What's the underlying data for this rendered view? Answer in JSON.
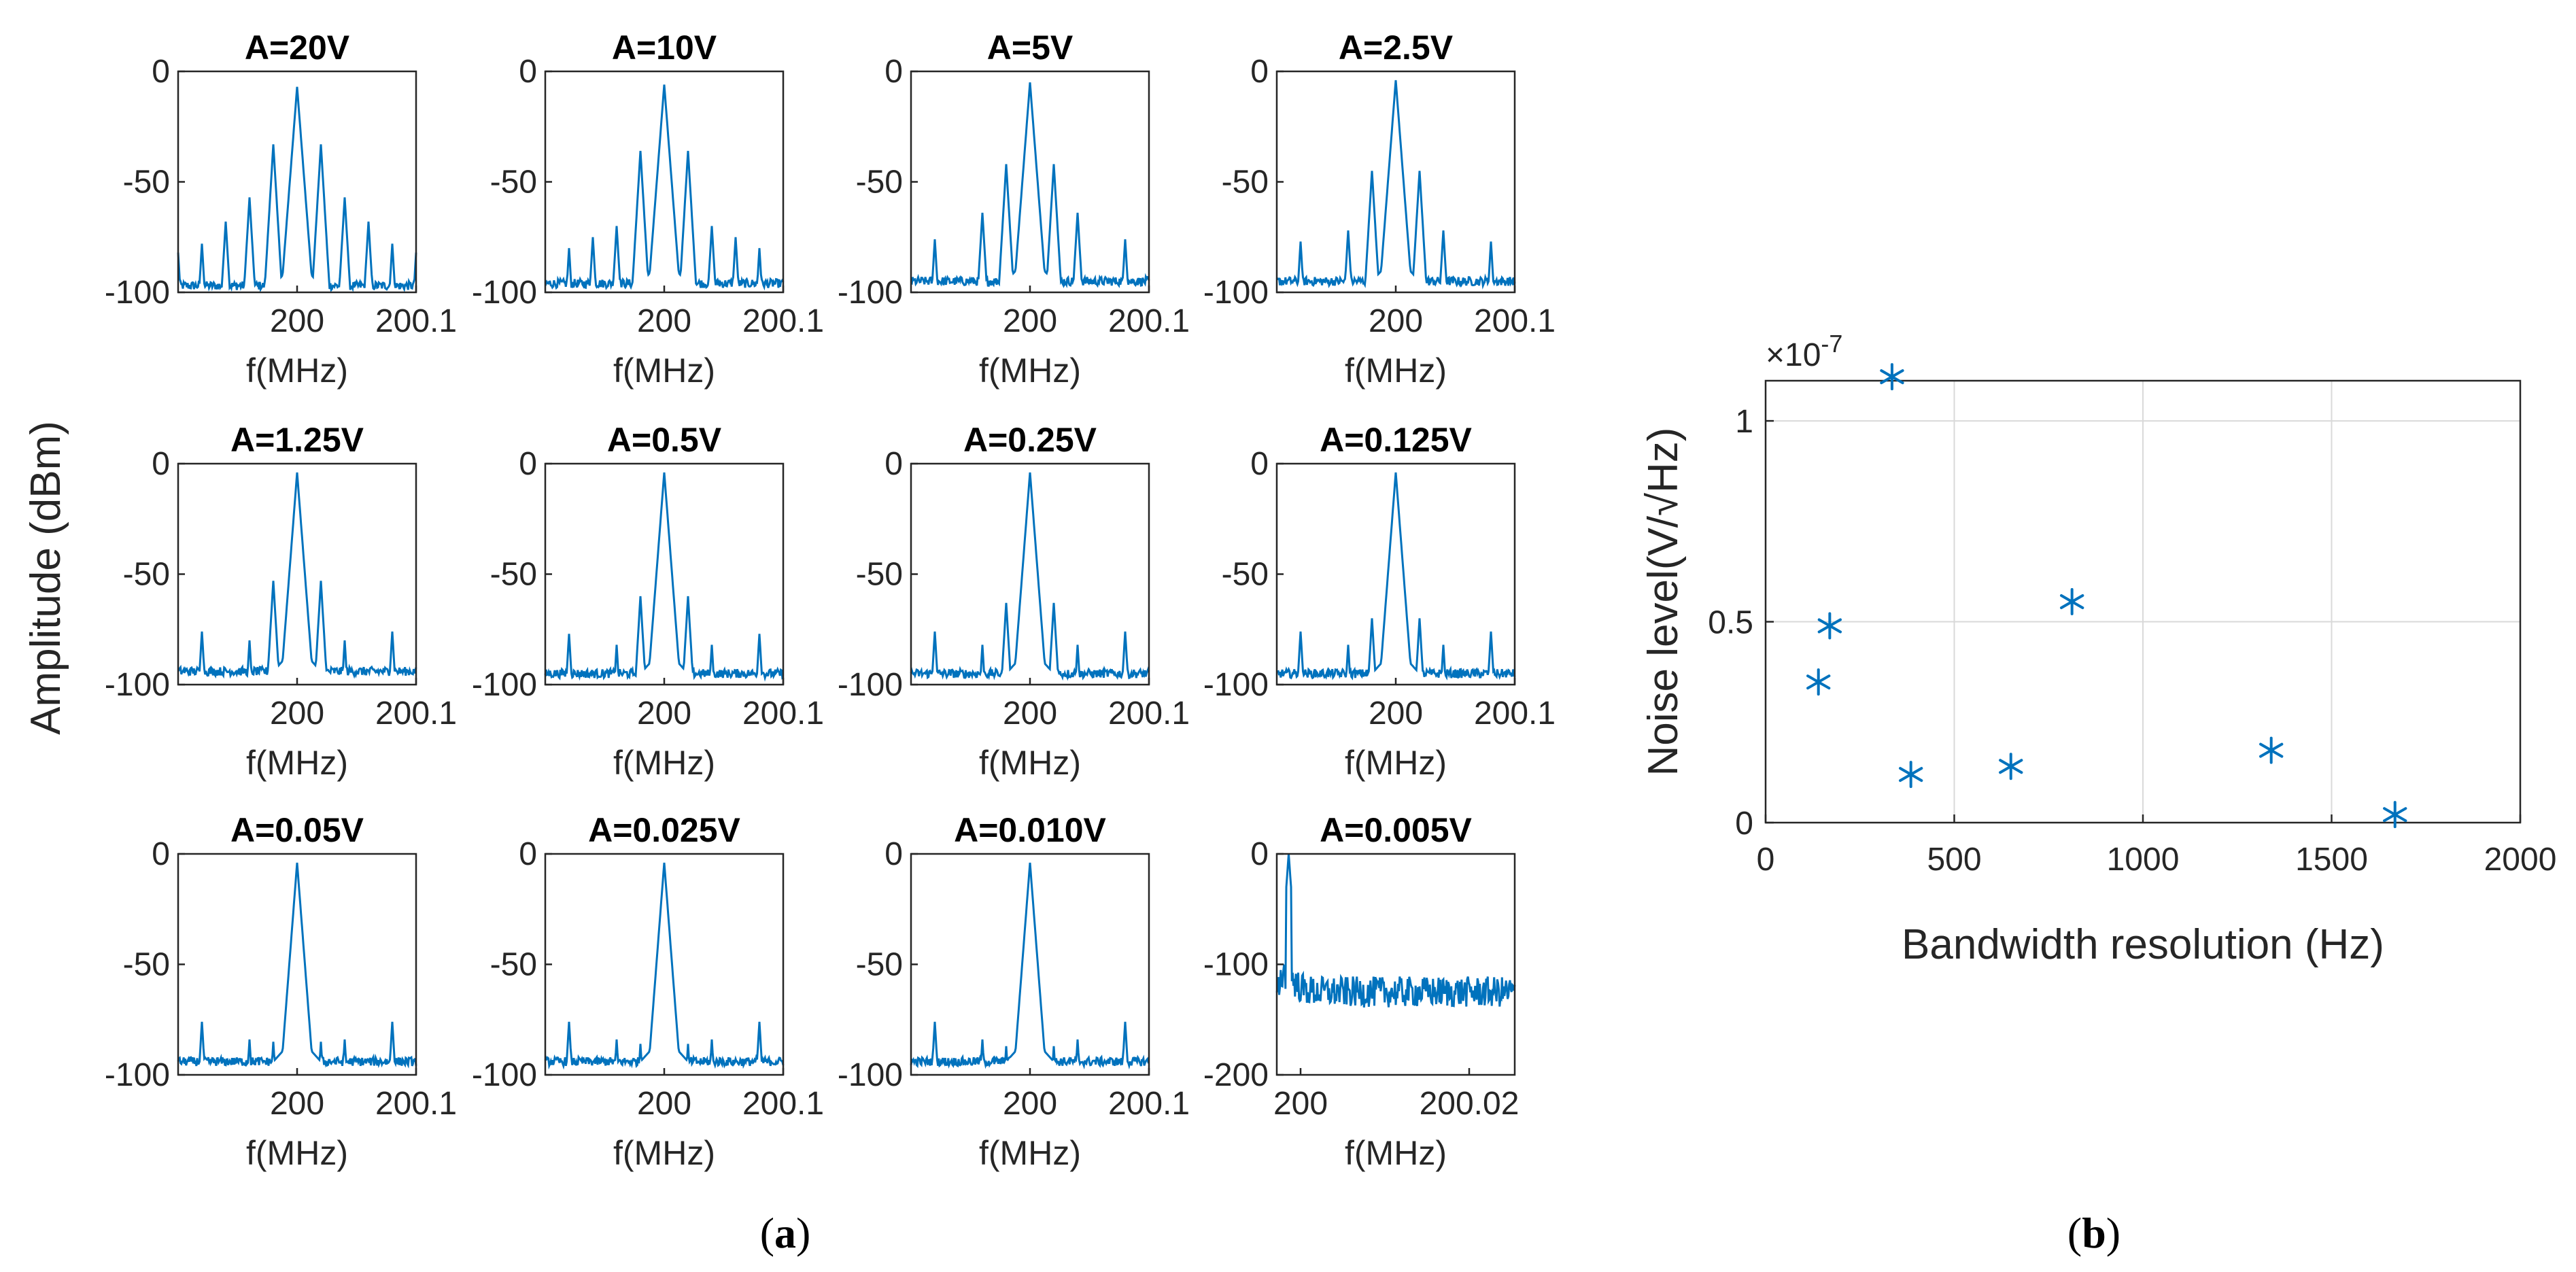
{
  "chart_data": [
    {
      "id": "a",
      "type": "line",
      "caption_letter": "a",
      "shared_ylabel": "Amplitude (dBm)",
      "color": "#0072BD",
      "subplots": [
        {
          "title": "A=20V",
          "xlabel": "f(MHz)",
          "ylim": [
            -100,
            0
          ],
          "yticks": [
            "0",
            "-50",
            "-100"
          ],
          "xtick_labels": [
            "200",
            "200.1"
          ],
          "carrier_dBm": -7,
          "floor_dBm": -97,
          "sidebands": [
            {
              "offset": 1,
              "dBm": -33
            },
            {
              "offset": 2,
              "dBm": -57
            },
            {
              "offset": 3,
              "dBm": -68
            },
            {
              "offset": 4,
              "dBm": -78
            },
            {
              "offset": 5,
              "dBm": -82
            }
          ]
        },
        {
          "title": "A=10V",
          "xlabel": "f(MHz)",
          "ylim": [
            -100,
            0
          ],
          "yticks": [
            "0",
            "-50",
            "-100"
          ],
          "xtick_labels": [
            "200",
            "200.1"
          ],
          "carrier_dBm": -6,
          "floor_dBm": -96,
          "sidebands": [
            {
              "offset": 1,
              "dBm": -36
            },
            {
              "offset": 2,
              "dBm": -70
            },
            {
              "offset": 3,
              "dBm": -75
            },
            {
              "offset": 4,
              "dBm": -80
            }
          ]
        },
        {
          "title": "A=5V",
          "xlabel": "f(MHz)",
          "ylim": [
            -100,
            0
          ],
          "yticks": [
            "0",
            "-50",
            "-100"
          ],
          "xtick_labels": [
            "200",
            "200.1"
          ],
          "carrier_dBm": -5,
          "floor_dBm": -95,
          "sidebands": [
            {
              "offset": 1,
              "dBm": -42
            },
            {
              "offset": 2,
              "dBm": -64
            },
            {
              "offset": 4,
              "dBm": -76
            }
          ]
        },
        {
          "title": "A=2.5V",
          "xlabel": "f(MHz)",
          "ylim": [
            -100,
            0
          ],
          "yticks": [
            "0",
            "-50",
            "-100"
          ],
          "xtick_labels": [
            "200",
            "200.1"
          ],
          "carrier_dBm": -4,
          "floor_dBm": -95,
          "sidebands": [
            {
              "offset": 1,
              "dBm": -45
            },
            {
              "offset": 2,
              "dBm": -72
            },
            {
              "offset": 4,
              "dBm": -77
            }
          ]
        },
        {
          "title": "A=1.25V",
          "xlabel": "f(MHz)",
          "ylim": [
            -100,
            0
          ],
          "yticks": [
            "0",
            "-50",
            "-100"
          ],
          "xtick_labels": [
            "200",
            "200.1"
          ],
          "carrier_dBm": -4,
          "floor_dBm": -94,
          "sidebands": [
            {
              "offset": 1,
              "dBm": -53
            },
            {
              "offset": 2,
              "dBm": -80
            },
            {
              "offset": 4,
              "dBm": -76
            }
          ]
        },
        {
          "title": "A=0.5V",
          "xlabel": "f(MHz)",
          "ylim": [
            -100,
            0
          ],
          "yticks": [
            "0",
            "-50",
            "-100"
          ],
          "xtick_labels": [
            "200",
            "200.1"
          ],
          "carrier_dBm": -4,
          "floor_dBm": -95,
          "sidebands": [
            {
              "offset": 1,
              "dBm": -60
            },
            {
              "offset": 2,
              "dBm": -82
            },
            {
              "offset": 4,
              "dBm": -77
            }
          ]
        },
        {
          "title": "A=0.25V",
          "xlabel": "f(MHz)",
          "ylim": [
            -100,
            0
          ],
          "yticks": [
            "0",
            "-50",
            "-100"
          ],
          "xtick_labels": [
            "200",
            "200.1"
          ],
          "carrier_dBm": -4,
          "floor_dBm": -95,
          "sidebands": [
            {
              "offset": 1,
              "dBm": -63
            },
            {
              "offset": 2,
              "dBm": -82
            },
            {
              "offset": 4,
              "dBm": -76
            }
          ]
        },
        {
          "title": "A=0.125V",
          "xlabel": "f(MHz)",
          "ylim": [
            -100,
            0
          ],
          "yticks": [
            "0",
            "-50",
            "-100"
          ],
          "xtick_labels": [
            "200",
            "200.1"
          ],
          "carrier_dBm": -4,
          "floor_dBm": -95,
          "sidebands": [
            {
              "offset": 1,
              "dBm": -70
            },
            {
              "offset": 2,
              "dBm": -82
            },
            {
              "offset": 4,
              "dBm": -76
            }
          ]
        },
        {
          "title": "A=0.05V",
          "xlabel": "f(MHz)",
          "ylim": [
            -100,
            0
          ],
          "yticks": [
            "0",
            "-50",
            "-100"
          ],
          "xtick_labels": [
            "200",
            "200.1"
          ],
          "carrier_dBm": -4,
          "floor_dBm": -94,
          "sidebands": [
            {
              "offset": 1,
              "dBm": -85
            },
            {
              "offset": 2,
              "dBm": -84
            },
            {
              "offset": 4,
              "dBm": -76
            }
          ]
        },
        {
          "title": "A=0.025V",
          "xlabel": "f(MHz)",
          "ylim": [
            -100,
            0
          ],
          "yticks": [
            "0",
            "-50",
            "-100"
          ],
          "xtick_labels": [
            "200",
            "200.1"
          ],
          "carrier_dBm": -4,
          "floor_dBm": -94,
          "sidebands": [
            {
              "offset": 1,
              "dBm": -86
            },
            {
              "offset": 2,
              "dBm": -84
            },
            {
              "offset": 4,
              "dBm": -76
            }
          ]
        },
        {
          "title": "A=0.010V",
          "xlabel": "f(MHz)",
          "ylim": [
            -100,
            0
          ],
          "yticks": [
            "0",
            "-50",
            "-100"
          ],
          "xtick_labels": [
            "200",
            "200.1"
          ],
          "carrier_dBm": -4,
          "floor_dBm": -94,
          "sidebands": [
            {
              "offset": 1,
              "dBm": -87
            },
            {
              "offset": 2,
              "dBm": -84
            },
            {
              "offset": 4,
              "dBm": -76
            }
          ]
        },
        {
          "title": "A=0.005V",
          "xlabel": "f(MHz)",
          "ylim": [
            -200,
            0
          ],
          "yticks": [
            "0",
            "-100",
            "-200"
          ],
          "xtick_labels": [
            "200",
            "200.02"
          ],
          "carrier_dBm": 0,
          "floor_dBm": -125,
          "wideband": true,
          "sidebands": []
        }
      ]
    },
    {
      "id": "b",
      "type": "scatter",
      "caption_letter": "b",
      "xlabel": "Bandwidth resolution (Hz)",
      "ylabel": "Noise level(V/√Hz)",
      "y_exponent": "×10",
      "y_exponent_power": "-7",
      "xlim": [
        0,
        2000
      ],
      "ylim": [
        0,
        1.1
      ],
      "xticks": [
        0,
        500,
        1000,
        1500,
        2000
      ],
      "yticks": [
        0,
        0.5,
        1
      ],
      "ytick_labels": [
        "0",
        "0.5",
        "1"
      ],
      "grid": true,
      "marker": "*",
      "color": "#0072BD",
      "points": [
        {
          "x": 140,
          "y": 0.35
        },
        {
          "x": 170,
          "y": 0.49
        },
        {
          "x": 335,
          "y": 1.11
        },
        {
          "x": 385,
          "y": 0.12
        },
        {
          "x": 650,
          "y": 0.14
        },
        {
          "x": 812,
          "y": 0.55
        },
        {
          "x": 1340,
          "y": 0.18
        },
        {
          "x": 1668,
          "y": 0.02
        }
      ]
    }
  ]
}
